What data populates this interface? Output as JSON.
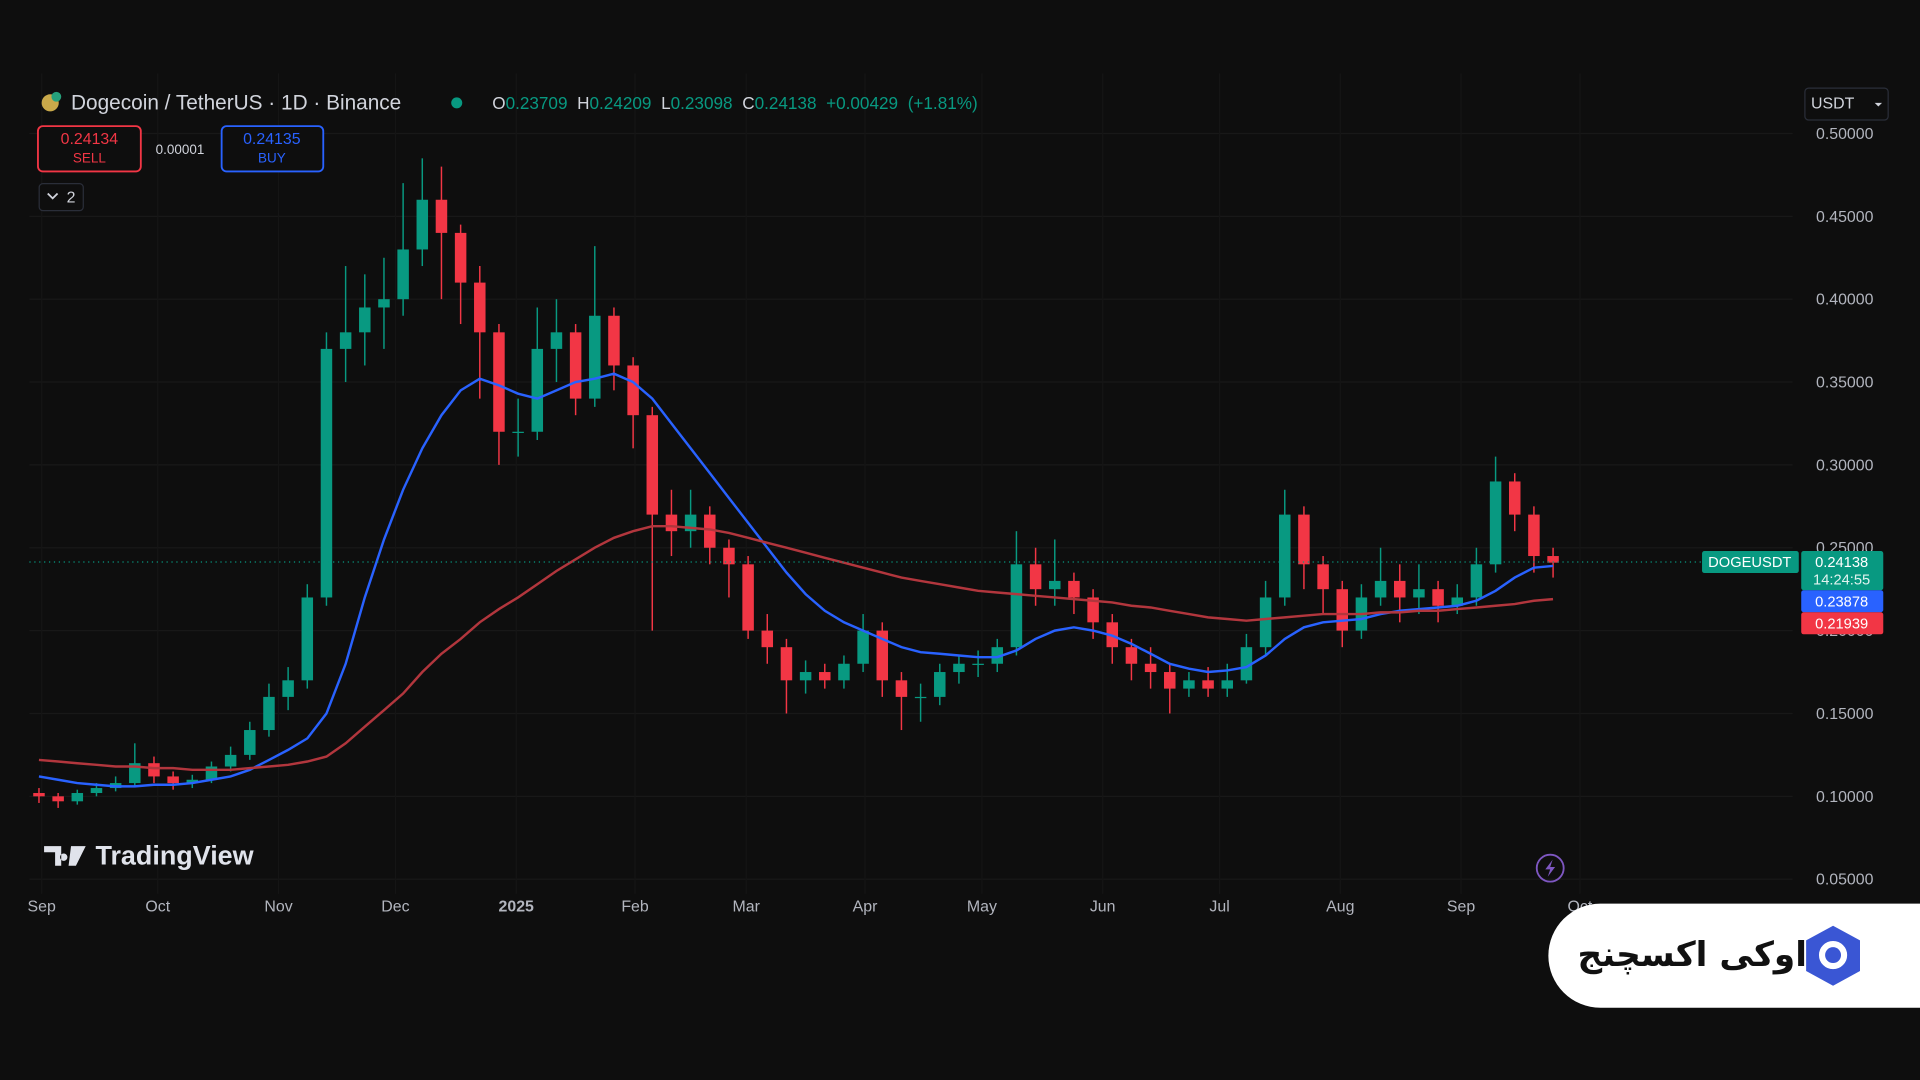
{
  "header": {
    "symbol": "Dogecoin / TetherUS · 1D · Binance",
    "ohlc": [
      {
        "key": "O",
        "value": 0.23709
      },
      {
        "key": "H",
        "value": 0.24209
      },
      {
        "key": "L",
        "value": 0.23098
      },
      {
        "key": "C",
        "value": 0.24138
      }
    ],
    "change": {
      "value": 0.00429,
      "label": "+0.00429"
    },
    "change_pct": {
      "value": 1.81,
      "label": "(+1.81%)"
    }
  },
  "trade": {
    "sell": {
      "price": 0.24134,
      "label": "SELL"
    },
    "spread": 1e-05,
    "buy": {
      "price": 0.24135,
      "label": "BUY"
    }
  },
  "indicators_count": 2,
  "currency": "USDT",
  "branding": {
    "tradingview": "TradingView",
    "watermark": "اوکی اکسچنج"
  },
  "chart_data": {
    "type": "candlestick",
    "up_color": "#089981",
    "down_color": "#f23645",
    "grid": true,
    "xlim": [
      0,
      92
    ],
    "xticks": [
      {
        "value": 0.64,
        "label": "Sep"
      },
      {
        "value": 6.7,
        "label": "Oct"
      },
      {
        "value": 13.0,
        "label": "Nov"
      },
      {
        "value": 19.1,
        "label": "Dec"
      },
      {
        "value": 25.4,
        "label": "2025"
      },
      {
        "value": 31.6,
        "label": "Feb"
      },
      {
        "value": 37.4,
        "label": "Mar"
      },
      {
        "value": 43.6,
        "label": "Apr"
      },
      {
        "value": 49.7,
        "label": "May"
      },
      {
        "value": 56.0,
        "label": "Jun"
      },
      {
        "value": 62.1,
        "label": "Jul"
      },
      {
        "value": 68.4,
        "label": "Aug"
      },
      {
        "value": 74.7,
        "label": "Sep"
      },
      {
        "value": 80.9,
        "label": "Oct"
      }
    ],
    "ylim": [
      0.05,
      0.5
    ],
    "yticks": [
      {
        "value": 0.05,
        "label": "0.05000"
      },
      {
        "value": 0.1,
        "label": "0.10000"
      },
      {
        "value": 0.15,
        "label": "0.15000"
      },
      {
        "value": 0.2,
        "label": "0.20000"
      },
      {
        "value": 0.25,
        "label": "0.25000"
      },
      {
        "value": 0.3,
        "label": "0.30000"
      },
      {
        "value": 0.35,
        "label": "0.35000"
      },
      {
        "value": 0.4,
        "label": "0.40000"
      },
      {
        "value": 0.45,
        "label": "0.45000"
      },
      {
        "value": 0.5,
        "label": "0.50000"
      }
    ],
    "open": [
      0.102,
      0.1,
      0.097,
      0.102,
      0.105,
      0.108,
      0.12,
      0.112,
      0.108,
      0.11,
      0.118,
      0.125,
      0.14,
      0.16,
      0.17,
      0.22,
      0.37,
      0.38,
      0.395,
      0.4,
      0.43,
      0.46,
      0.44,
      0.41,
      0.38,
      0.32,
      0.32,
      0.37,
      0.38,
      0.34,
      0.39,
      0.36,
      0.33,
      0.27,
      0.26,
      0.27,
      0.25,
      0.24,
      0.2,
      0.19,
      0.17,
      0.175,
      0.17,
      0.18,
      0.2,
      0.17,
      0.16,
      0.16,
      0.175,
      0.18,
      0.18,
      0.19,
      0.24,
      0.225,
      0.23,
      0.22,
      0.205,
      0.19,
      0.18,
      0.175,
      0.165,
      0.17,
      0.165,
      0.17,
      0.19,
      0.22,
      0.27,
      0.24,
      0.225,
      0.2,
      0.22,
      0.23,
      0.22,
      0.225,
      0.215,
      0.22,
      0.24,
      0.29,
      0.27,
      0.245
    ],
    "high": [
      0.105,
      0.102,
      0.104,
      0.108,
      0.112,
      0.132,
      0.124,
      0.115,
      0.113,
      0.121,
      0.13,
      0.145,
      0.168,
      0.178,
      0.228,
      0.38,
      0.42,
      0.415,
      0.425,
      0.47,
      0.485,
      0.48,
      0.445,
      0.42,
      0.385,
      0.34,
      0.395,
      0.4,
      0.385,
      0.432,
      0.395,
      0.365,
      0.335,
      0.285,
      0.285,
      0.275,
      0.255,
      0.245,
      0.21,
      0.195,
      0.182,
      0.18,
      0.185,
      0.21,
      0.205,
      0.175,
      0.168,
      0.18,
      0.185,
      0.188,
      0.195,
      0.26,
      0.25,
      0.255,
      0.235,
      0.225,
      0.21,
      0.195,
      0.19,
      0.18,
      0.175,
      0.178,
      0.18,
      0.198,
      0.23,
      0.285,
      0.275,
      0.245,
      0.23,
      0.228,
      0.25,
      0.24,
      0.24,
      0.23,
      0.228,
      0.25,
      0.305,
      0.295,
      0.275,
      0.25
    ],
    "low": [
      0.096,
      0.093,
      0.095,
      0.1,
      0.103,
      0.106,
      0.108,
      0.104,
      0.105,
      0.108,
      0.115,
      0.122,
      0.136,
      0.152,
      0.165,
      0.215,
      0.35,
      0.36,
      0.37,
      0.39,
      0.42,
      0.4,
      0.385,
      0.34,
      0.3,
      0.305,
      0.315,
      0.35,
      0.33,
      0.335,
      0.345,
      0.31,
      0.2,
      0.245,
      0.25,
      0.24,
      0.22,
      0.195,
      0.18,
      0.15,
      0.162,
      0.165,
      0.165,
      0.175,
      0.16,
      0.14,
      0.145,
      0.155,
      0.168,
      0.172,
      0.175,
      0.185,
      0.215,
      0.215,
      0.21,
      0.195,
      0.18,
      0.17,
      0.165,
      0.15,
      0.16,
      0.16,
      0.16,
      0.168,
      0.185,
      0.215,
      0.225,
      0.21,
      0.19,
      0.195,
      0.215,
      0.205,
      0.21,
      0.205,
      0.21,
      0.215,
      0.235,
      0.26,
      0.235,
      0.232
    ],
    "close": [
      0.1,
      0.097,
      0.102,
      0.105,
      0.108,
      0.12,
      0.112,
      0.108,
      0.11,
      0.118,
      0.125,
      0.14,
      0.16,
      0.17,
      0.22,
      0.37,
      0.38,
      0.395,
      0.4,
      0.43,
      0.46,
      0.44,
      0.41,
      0.38,
      0.32,
      0.32,
      0.37,
      0.38,
      0.34,
      0.39,
      0.36,
      0.33,
      0.27,
      0.26,
      0.27,
      0.25,
      0.24,
      0.2,
      0.19,
      0.17,
      0.175,
      0.17,
      0.18,
      0.2,
      0.17,
      0.16,
      0.16,
      0.175,
      0.18,
      0.18,
      0.19,
      0.24,
      0.225,
      0.23,
      0.22,
      0.205,
      0.19,
      0.18,
      0.175,
      0.165,
      0.17,
      0.165,
      0.17,
      0.19,
      0.22,
      0.27,
      0.24,
      0.225,
      0.2,
      0.22,
      0.23,
      0.22,
      0.225,
      0.215,
      0.22,
      0.24,
      0.29,
      0.27,
      0.245,
      0.241
    ],
    "series": [
      {
        "color": "#2962ff",
        "tag": 0.23878,
        "values": [
          0.112,
          0.11,
          0.108,
          0.107,
          0.106,
          0.106,
          0.107,
          0.107,
          0.108,
          0.11,
          0.112,
          0.116,
          0.122,
          0.128,
          0.135,
          0.15,
          0.18,
          0.22,
          0.255,
          0.285,
          0.31,
          0.33,
          0.345,
          0.352,
          0.348,
          0.343,
          0.34,
          0.345,
          0.35,
          0.352,
          0.355,
          0.35,
          0.34,
          0.325,
          0.31,
          0.295,
          0.28,
          0.265,
          0.25,
          0.235,
          0.222,
          0.212,
          0.205,
          0.2,
          0.195,
          0.19,
          0.187,
          0.186,
          0.185,
          0.184,
          0.184,
          0.188,
          0.195,
          0.2,
          0.202,
          0.2,
          0.197,
          0.192,
          0.186,
          0.18,
          0.177,
          0.175,
          0.176,
          0.178,
          0.185,
          0.195,
          0.202,
          0.205,
          0.206,
          0.207,
          0.21,
          0.212,
          0.213,
          0.214,
          0.215,
          0.218,
          0.224,
          0.232,
          0.238,
          0.239
        ]
      },
      {
        "color": "#b2363d",
        "tag": 0.21939,
        "values": [
          0.122,
          0.121,
          0.12,
          0.119,
          0.118,
          0.118,
          0.117,
          0.117,
          0.116,
          0.116,
          0.116,
          0.117,
          0.118,
          0.119,
          0.121,
          0.124,
          0.132,
          0.142,
          0.152,
          0.162,
          0.175,
          0.186,
          0.195,
          0.205,
          0.213,
          0.22,
          0.228,
          0.236,
          0.243,
          0.25,
          0.256,
          0.26,
          0.263,
          0.263,
          0.262,
          0.261,
          0.259,
          0.256,
          0.253,
          0.25,
          0.247,
          0.244,
          0.241,
          0.238,
          0.235,
          0.232,
          0.23,
          0.228,
          0.226,
          0.224,
          0.223,
          0.222,
          0.221,
          0.22,
          0.219,
          0.218,
          0.217,
          0.215,
          0.214,
          0.212,
          0.21,
          0.208,
          0.207,
          0.206,
          0.207,
          0.208,
          0.209,
          0.21,
          0.21,
          0.21,
          0.211,
          0.211,
          0.212,
          0.212,
          0.213,
          0.214,
          0.215,
          0.216,
          0.218,
          0.219
        ]
      }
    ],
    "last_price": {
      "symbol": "DOGEUSDT",
      "value": 0.24138,
      "countdown": "14:24:55"
    }
  }
}
